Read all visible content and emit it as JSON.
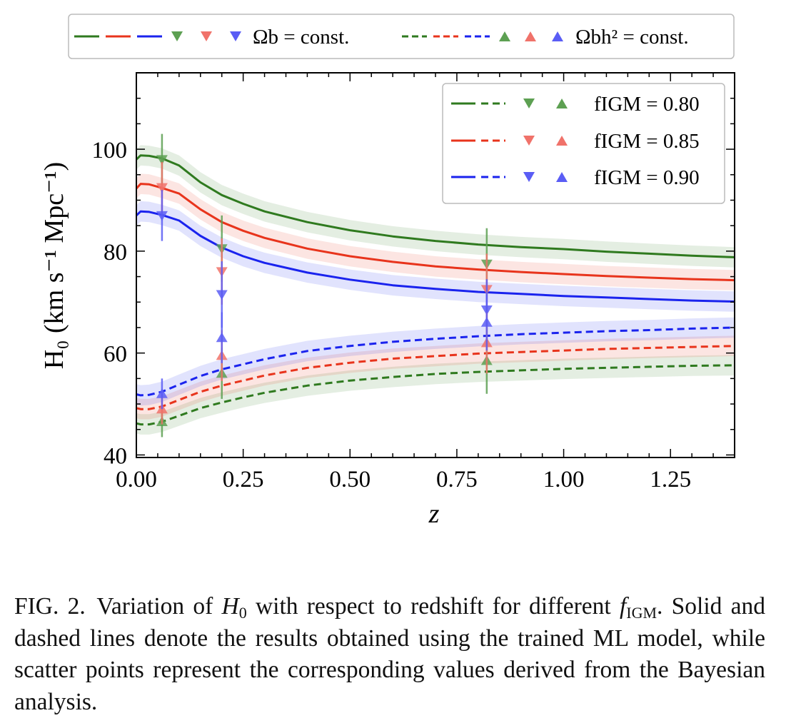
{
  "chart_data": {
    "type": "line",
    "xlabel": "z",
    "ylabel": "H₀ (km s⁻¹ Mpc⁻¹)",
    "xlim": [
      0.0,
      1.4
    ],
    "ylim": [
      39.5,
      115
    ],
    "xticks": [
      "0.00",
      "0.25",
      "0.50",
      "0.75",
      "1.00",
      "1.25"
    ],
    "yticks": [
      "40",
      "60",
      "80",
      "100"
    ],
    "grid": false,
    "top_legend": {
      "placement": "top, above plot",
      "entries": [
        {
          "style": "solid lines + downward triangles",
          "label": "Ωb = const."
        },
        {
          "style": "dashed lines + upward triangles",
          "label": "Ωbh² = const."
        }
      ]
    },
    "inner_legend": {
      "placement": "upper right",
      "entries": [
        {
          "label": "fIGM = 0.80",
          "color": "#2f7a1f"
        },
        {
          "label": "fIGM = 0.85",
          "color": "#e8341c"
        },
        {
          "label": "fIGM = 0.90",
          "color": "#1a23ee"
        }
      ]
    },
    "band_halfwidth": 2.0,
    "series": [
      {
        "fIGM": "0.80",
        "color": "#2f7a1f",
        "dash": false,
        "x": [
          0.0,
          0.01,
          0.03,
          0.06,
          0.1,
          0.15,
          0.2,
          0.25,
          0.3,
          0.4,
          0.5,
          0.6,
          0.7,
          0.8,
          0.9,
          1.0,
          1.1,
          1.2,
          1.3,
          1.4
        ],
        "y": [
          98.0,
          98.8,
          98.7,
          98.2,
          96.8,
          93.5,
          91.0,
          89.3,
          87.8,
          85.7,
          84.1,
          82.9,
          82.0,
          81.3,
          80.8,
          80.4,
          79.9,
          79.5,
          79.1,
          78.8
        ]
      },
      {
        "fIGM": "0.85",
        "color": "#e8341c",
        "dash": false,
        "x": [
          0.0,
          0.01,
          0.03,
          0.06,
          0.1,
          0.15,
          0.2,
          0.25,
          0.3,
          0.4,
          0.5,
          0.6,
          0.7,
          0.8,
          0.9,
          1.0,
          1.1,
          1.2,
          1.3,
          1.4
        ],
        "y": [
          92.3,
          93.2,
          93.1,
          92.4,
          91.3,
          88.2,
          85.7,
          84.0,
          82.6,
          80.5,
          79.0,
          77.9,
          77.0,
          76.4,
          75.9,
          75.5,
          75.1,
          74.8,
          74.5,
          74.3
        ]
      },
      {
        "fIGM": "0.90",
        "color": "#1a23ee",
        "dash": false,
        "x": [
          0.0,
          0.01,
          0.03,
          0.06,
          0.1,
          0.15,
          0.2,
          0.25,
          0.3,
          0.4,
          0.5,
          0.6,
          0.7,
          0.8,
          0.9,
          1.0,
          1.1,
          1.2,
          1.3,
          1.4
        ],
        "y": [
          87.0,
          87.8,
          87.7,
          87.1,
          86.0,
          83.0,
          80.7,
          79.0,
          77.7,
          75.8,
          74.4,
          73.3,
          72.6,
          72.0,
          71.6,
          71.2,
          70.9,
          70.6,
          70.3,
          70.1
        ]
      },
      {
        "fIGM": "0.80",
        "color": "#2f7a1f",
        "dash": true,
        "x": [
          0.0,
          0.01,
          0.03,
          0.06,
          0.1,
          0.15,
          0.2,
          0.25,
          0.3,
          0.4,
          0.5,
          0.6,
          0.7,
          0.8,
          0.9,
          1.0,
          1.1,
          1.2,
          1.3,
          1.4
        ],
        "y": [
          46.2,
          46.0,
          46.0,
          46.5,
          47.7,
          49.2,
          50.3,
          51.3,
          52.2,
          53.6,
          54.6,
          55.3,
          55.9,
          56.3,
          56.6,
          56.9,
          57.1,
          57.3,
          57.5,
          57.6
        ]
      },
      {
        "fIGM": "0.85",
        "color": "#e8341c",
        "dash": true,
        "x": [
          0.0,
          0.01,
          0.03,
          0.06,
          0.1,
          0.15,
          0.2,
          0.25,
          0.3,
          0.4,
          0.5,
          0.6,
          0.7,
          0.8,
          0.9,
          1.0,
          1.1,
          1.2,
          1.3,
          1.4
        ],
        "y": [
          49.2,
          49.0,
          49.0,
          49.5,
          50.8,
          52.4,
          53.6,
          54.6,
          55.6,
          57.1,
          58.1,
          58.9,
          59.4,
          59.9,
          60.2,
          60.5,
          60.8,
          61.0,
          61.2,
          61.4
        ]
      },
      {
        "fIGM": "0.90",
        "color": "#1a23ee",
        "dash": true,
        "x": [
          0.0,
          0.01,
          0.03,
          0.06,
          0.1,
          0.15,
          0.2,
          0.25,
          0.3,
          0.4,
          0.5,
          0.6,
          0.7,
          0.8,
          0.9,
          1.0,
          1.1,
          1.2,
          1.3,
          1.4
        ],
        "y": [
          51.9,
          51.7,
          51.8,
          52.4,
          53.8,
          55.5,
          56.8,
          57.8,
          58.8,
          60.4,
          61.4,
          62.2,
          62.8,
          63.3,
          63.7,
          64.0,
          64.3,
          64.5,
          64.8,
          65.0
        ]
      }
    ],
    "points": [
      {
        "z": 0.06,
        "color": "#5da052",
        "marker": "down",
        "y": 98.0,
        "err": 5.0
      },
      {
        "z": 0.06,
        "color": "#f0726a",
        "marker": "down",
        "y": 92.5,
        "err": 5.0
      },
      {
        "z": 0.06,
        "color": "#5a5df5",
        "marker": "down",
        "y": 87.0,
        "err": 5.0
      },
      {
        "z": 0.06,
        "color": "#5da052",
        "marker": "up",
        "y": 46.5,
        "err": 3.0
      },
      {
        "z": 0.06,
        "color": "#f0726a",
        "marker": "up",
        "y": 49.0,
        "err": 3.0
      },
      {
        "z": 0.06,
        "color": "#5a5df5",
        "marker": "up",
        "y": 52.0,
        "err": 3.0
      },
      {
        "z": 0.2,
        "color": "#5da052",
        "marker": "down",
        "y": 80.5,
        "err": 6.5
      },
      {
        "z": 0.2,
        "color": "#f0726a",
        "marker": "down",
        "y": 76.0,
        "err": 6.5
      },
      {
        "z": 0.2,
        "color": "#5a5df5",
        "marker": "down",
        "y": 71.5,
        "err": 6.5
      },
      {
        "z": 0.2,
        "color": "#5da052",
        "marker": "up",
        "y": 56.0,
        "err": 5.0
      },
      {
        "z": 0.2,
        "color": "#f0726a",
        "marker": "up",
        "y": 59.5,
        "err": 5.0
      },
      {
        "z": 0.2,
        "color": "#5a5df5",
        "marker": "up",
        "y": 63.0,
        "err": 5.0
      },
      {
        "z": 0.82,
        "color": "#5da052",
        "marker": "down",
        "y": 77.5,
        "err": 7.0
      },
      {
        "z": 0.82,
        "color": "#f0726a",
        "marker": "down",
        "y": 72.5,
        "err": 7.0
      },
      {
        "z": 0.82,
        "color": "#5a5df5",
        "marker": "down",
        "y": 68.5,
        "err": 6.0
      },
      {
        "z": 0.82,
        "color": "#5da052",
        "marker": "up",
        "y": 58.5,
        "err": 6.5
      },
      {
        "z": 0.82,
        "color": "#f0726a",
        "marker": "up",
        "y": 62.0,
        "err": 6.0
      },
      {
        "z": 0.82,
        "color": "#5a5df5",
        "marker": "up",
        "y": 66.0,
        "err": 5.5
      }
    ]
  },
  "caption": {
    "label": "FIG. 2.",
    "t1": "Variation of ",
    "h0": "H",
    "h0sub": "0",
    "t2": " with respect to redshift for different ",
    "figm": "f",
    "figmsub": "IGM",
    "t3": ". Solid and dashed lines denote the results obtained using the trained ML model, while scatter points represent the corresponding values derived from the Bayesian analysis."
  }
}
